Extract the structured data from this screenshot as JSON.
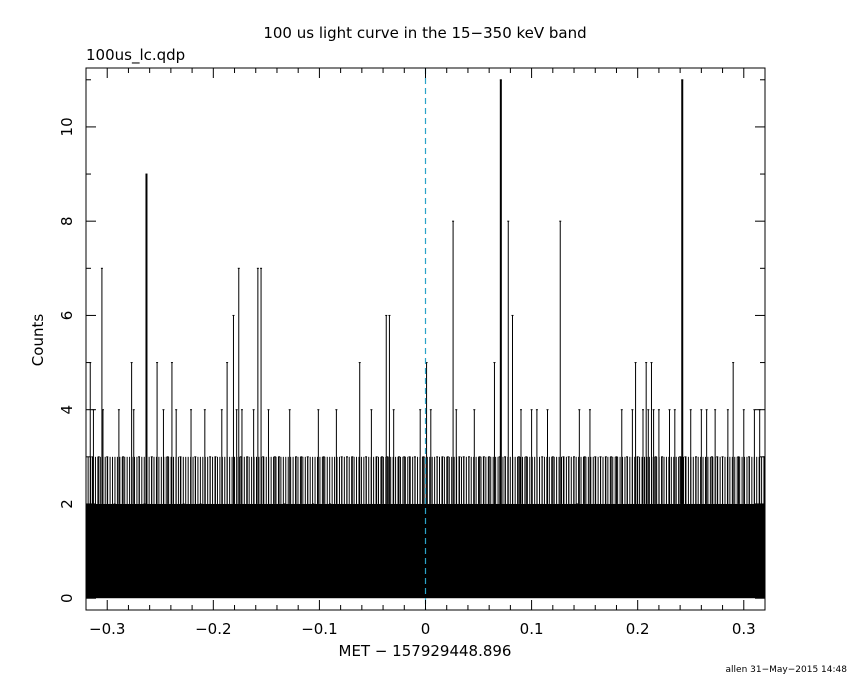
{
  "chart_data": {
    "type": "line",
    "title": "100 us light curve in the 15−350 keV band",
    "file_label": "100us_lc.qdp",
    "xlabel": "MET − 157929448.896",
    "ylabel": "Counts",
    "footer": "allen 31−May−2015 14:48",
    "xlim": [
      -0.32,
      0.32
    ],
    "ylim": [
      -0.25,
      11.25
    ],
    "x_ticks": [
      -0.3,
      -0.2,
      -0.1,
      0,
      0.1,
      0.2,
      0.3
    ],
    "x_tick_labels": [
      "−0.3",
      "−0.2",
      "−0.1",
      "0",
      "0.1",
      "0.2",
      "0.3"
    ],
    "y_ticks": [
      0,
      2,
      4,
      6,
      8,
      10
    ],
    "y_tick_labels": [
      "0",
      "2",
      "4",
      "6",
      "8",
      "10"
    ],
    "bin_width": 0.0001,
    "trigger_line_x": 0,
    "trigger_line_color": "#2aa3c8",
    "series_color": "#000000",
    "series": [
      {
        "name": "",
        "values_note": "",
        "x": [
          -0.316,
          -0.314,
          -0.313,
          -0.308,
          -0.305,
          -0.304,
          -0.3,
          -0.293,
          -0.289,
          -0.285,
          -0.277,
          -0.275,
          -0.27,
          -0.265,
          -0.263,
          -0.258,
          -0.253,
          -0.247,
          -0.243,
          -0.239,
          -0.235,
          -0.231,
          -0.228,
          -0.221,
          -0.217,
          -0.212,
          -0.208,
          -0.203,
          -0.198,
          -0.192,
          -0.187,
          -0.181,
          -0.178,
          -0.176,
          -0.174,
          -0.173,
          -0.168,
          -0.162,
          -0.158,
          -0.155,
          -0.153,
          -0.148,
          -0.142,
          -0.138,
          -0.133,
          -0.128,
          -0.122,
          -0.117,
          -0.111,
          -0.106,
          -0.101,
          -0.096,
          -0.09,
          -0.084,
          -0.079,
          -0.074,
          -0.069,
          -0.062,
          -0.056,
          -0.051,
          -0.046,
          -0.041,
          -0.037,
          -0.036,
          -0.034,
          -0.03,
          -0.025,
          -0.02,
          -0.015,
          -0.01,
          -0.005,
          -0.002,
          0.001,
          0.005,
          0.011,
          0.016,
          0.021,
          0.026,
          0.029,
          0.032,
          0.036,
          0.041,
          0.046,
          0.051,
          0.055,
          0.06,
          0.065,
          0.07,
          0.071,
          0.075,
          0.078,
          0.082,
          0.088,
          0.09,
          0.095,
          0.1,
          0.105,
          0.11,
          0.115,
          0.12,
          0.127,
          0.13,
          0.135,
          0.14,
          0.143,
          0.145,
          0.15,
          0.155,
          0.16,
          0.165,
          0.17,
          0.175,
          0.18,
          0.185,
          0.19,
          0.195,
          0.198,
          0.2,
          0.205,
          0.208,
          0.21,
          0.213,
          0.215,
          0.217,
          0.22,
          0.223,
          0.23,
          0.235,
          0.24,
          0.242,
          0.245,
          0.25,
          0.255,
          0.26,
          0.265,
          0.27,
          0.273,
          0.275,
          0.28,
          0.285,
          0.29,
          0.295,
          0.3,
          0.305,
          0.31,
          0.315,
          0.319
        ],
        "y": [
          5,
          3,
          4,
          3,
          7,
          4,
          3,
          2,
          4,
          3,
          5,
          4,
          3,
          2,
          9,
          3,
          5,
          4,
          3,
          5,
          4,
          3,
          2,
          4,
          3,
          2,
          4,
          3,
          3,
          4,
          5,
          6,
          4,
          7,
          3,
          4,
          3,
          4,
          7,
          7,
          3,
          4,
          3,
          3,
          2,
          4,
          3,
          3,
          3,
          2,
          4,
          3,
          2,
          4,
          3,
          3,
          3,
          5,
          3,
          4,
          3,
          3,
          6,
          3,
          6,
          4,
          3,
          3,
          3,
          3,
          4,
          3,
          5,
          4,
          3,
          3,
          3,
          8,
          4,
          3,
          3,
          3,
          4,
          3,
          3,
          3,
          5,
          3,
          11,
          3,
          8,
          6,
          3,
          4,
          3,
          4,
          4,
          3,
          4,
          3,
          8,
          3,
          3,
          3,
          2,
          4,
          3,
          4,
          3,
          3,
          3,
          3,
          3,
          4,
          3,
          4,
          5,
          3,
          4,
          5,
          4,
          5,
          4,
          3,
          4,
          3,
          4,
          4,
          3,
          11,
          3,
          4,
          3,
          4,
          4,
          3,
          4,
          3,
          3,
          4,
          5,
          3,
          4,
          3,
          4,
          4,
          3
        ]
      }
    ]
  }
}
